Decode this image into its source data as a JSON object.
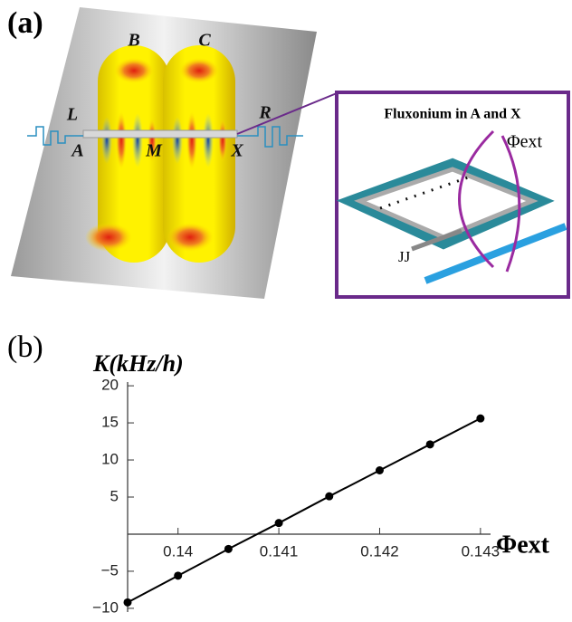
{
  "panel_a": {
    "label": "(a)",
    "cavity_labels": [
      "B",
      "C"
    ],
    "resonator_labels": [
      "L",
      "R"
    ],
    "site_labels": [
      "A",
      "M",
      "X"
    ],
    "inset": {
      "title": "Fluxonium in A and X",
      "flux_label": "Φext",
      "junction_label": "JJ"
    }
  },
  "chart_data": {
    "type": "line",
    "panel_label": "(b)",
    "y_label": "K(kHz/h)",
    "x_label": "Φext",
    "x": [
      0.1395,
      0.14,
      0.1405,
      0.141,
      0.1415,
      0.142,
      0.1425,
      0.143
    ],
    "values": [
      -9.2,
      -5.6,
      -2.0,
      1.5,
      5.1,
      8.6,
      12.1,
      15.6
    ],
    "color": "#000000",
    "xlim": [
      0.1395,
      0.1431
    ],
    "ylim": [
      -10.5,
      20.5
    ],
    "xticks": [
      0.14,
      0.141,
      0.142,
      0.143
    ],
    "yticks": [
      {
        "value": -10,
        "label": "−10"
      },
      {
        "value": -5,
        "label": "−5"
      },
      5,
      10,
      15,
      20
    ]
  }
}
